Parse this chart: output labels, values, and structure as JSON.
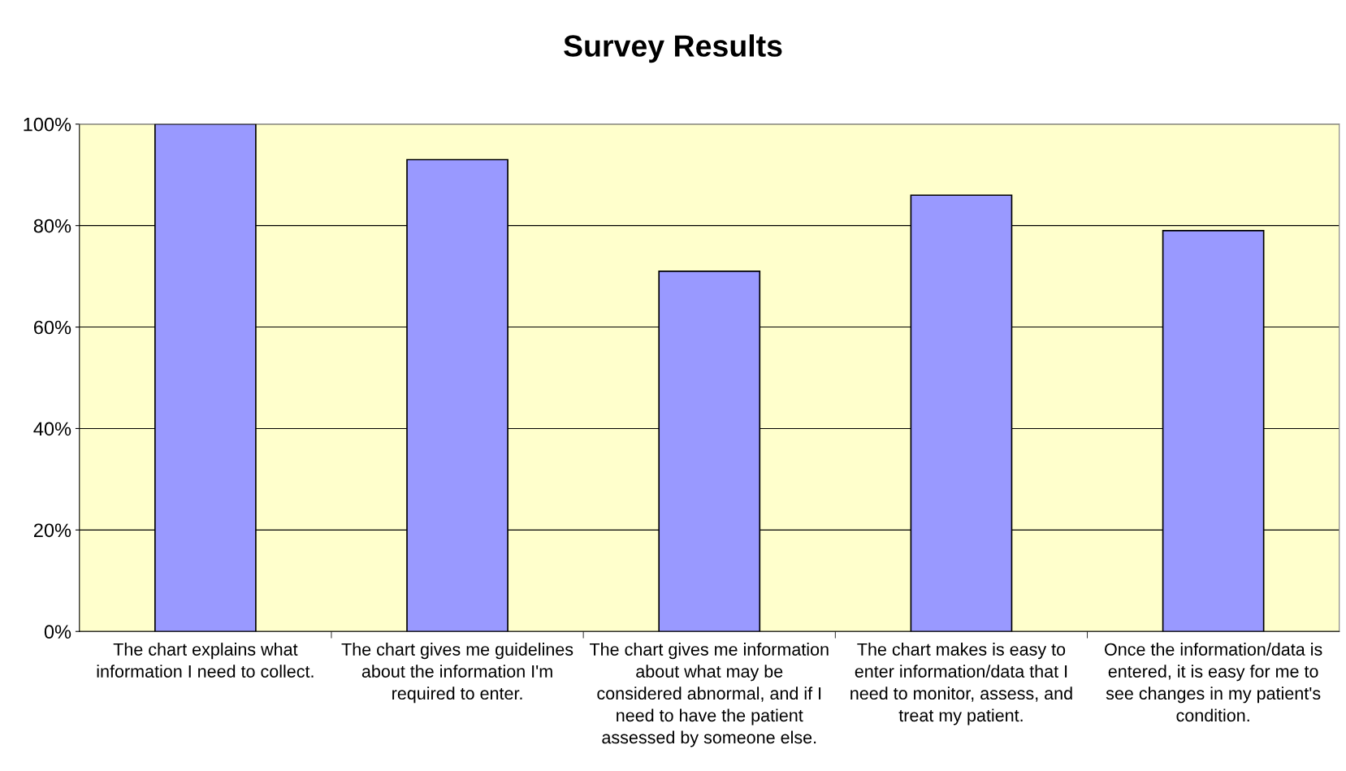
{
  "chart_data": {
    "type": "bar",
    "title": "Survey Results",
    "categories": [
      "The chart explains what\ninformation I need to collect.",
      "The chart gives me guidelines\nabout the information I'm\nrequired to enter.",
      "The chart gives me information\nabout what may be\nconsidered abnormal, and if I\nneed to have the patient\nassessed by someone else.",
      "The chart makes is easy to\nenter information/data that I\nneed to monitor, assess, and\ntreat my patient.",
      "Once the information/data is\nentered, it is easy for me to\nsee changes in my patient's\ncondition."
    ],
    "values": [
      100,
      93,
      71,
      86,
      79
    ],
    "color": "#9999ff",
    "ylim": [
      0,
      100
    ],
    "yticks": [
      {
        "value": 0,
        "label": "0%"
      },
      {
        "value": 20,
        "label": "20%"
      },
      {
        "value": 40,
        "label": "40%"
      },
      {
        "value": 60,
        "label": "60%"
      },
      {
        "value": 80,
        "label": "80%"
      },
      {
        "value": 100,
        "label": "100%"
      }
    ],
    "grid": "y",
    "legend": false
  }
}
